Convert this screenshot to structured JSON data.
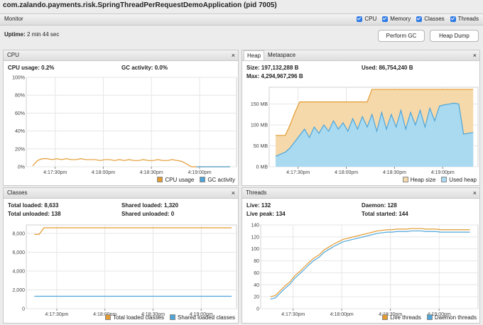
{
  "window_title": "com.zalando.payments.risk.SpringThreadPerRequestDemoApplication (pid 7005)",
  "monitor": {
    "title": "Monitor",
    "checkboxes": [
      "CPU",
      "Memory",
      "Classes",
      "Threads"
    ]
  },
  "uptime": {
    "label": "Uptime:",
    "value": "2 min 44 sec"
  },
  "buttons": [
    "Perform GC",
    "Heap Dump"
  ],
  "panels": [
    {
      "title": "CPU",
      "stats": [
        [
          {
            "label": "CPU usage:",
            "value": "0.2%"
          }
        ],
        [
          {
            "label": "GC activity:",
            "value": "0.0%"
          }
        ]
      ],
      "chart": {
        "type": "line",
        "xlim": [
          58632,
          58763
        ],
        "ylim": [
          0,
          100
        ],
        "xticks": [
          {
            "value": 58650,
            "label": "4:17:30pm"
          },
          {
            "value": 58680,
            "label": "4:18:00pm"
          },
          {
            "value": 58710,
            "label": "4:18:30pm"
          },
          {
            "value": 58740,
            "label": "4:19:00pm"
          }
        ],
        "yticks": [
          {
            "value": 0,
            "label": "0%"
          },
          {
            "value": 20,
            "label": "20%"
          },
          {
            "value": 40,
            "label": "40%"
          },
          {
            "value": 60,
            "label": "60%"
          },
          {
            "value": 80,
            "label": "80%"
          },
          {
            "value": 100,
            "label": "100%"
          }
        ],
        "x": [
          58636,
          58639,
          58642,
          58645,
          58648,
          58651,
          58654,
          58657,
          58660,
          58663,
          58666,
          58669,
          58672,
          58675,
          58678,
          58681,
          58684,
          58687,
          58690,
          58693,
          58696,
          58699,
          58702,
          58705,
          58708,
          58711,
          58714,
          58717,
          58720,
          58723,
          58726,
          58729,
          58732,
          58735,
          58738,
          58741,
          58744,
          58747,
          58750,
          58753,
          58756,
          58759
        ],
        "series": [
          {
            "name": "CPU usage",
            "color": "#e39a2f",
            "values": [
              1,
              7,
              9,
              9,
              8,
              9,
              8,
              9,
              8,
              8,
              9,
              8,
              8,
              8,
              7,
              8,
              8,
              7,
              8,
              7,
              8,
              7,
              7,
              8,
              7,
              7,
              8,
              7,
              7,
              8,
              7,
              6,
              3,
              0,
              0,
              0,
              0,
              0,
              0,
              0,
              0,
              0
            ]
          },
          {
            "name": "GC activity",
            "color": "#4ea5d9",
            "values": [
              null,
              null,
              null,
              null,
              null,
              null,
              null,
              null,
              null,
              null,
              null,
              null,
              null,
              null,
              null,
              null,
              null,
              null,
              null,
              null,
              null,
              null,
              null,
              null,
              null,
              null,
              null,
              null,
              null,
              null,
              null,
              null,
              null,
              null,
              0,
              0,
              0,
              0,
              0,
              0,
              0,
              0
            ]
          }
        ]
      }
    },
    {
      "tabs": [
        "Heap",
        "Metaspace"
      ],
      "stats": [
        [
          {
            "label": "Size:",
            "value": "197,132,288 B"
          },
          {
            "label": "Max:",
            "value": "4,294,967,296 B"
          }
        ],
        [
          {
            "label": "Used:",
            "value": "86,754,240 B"
          }
        ]
      ],
      "chart": {
        "type": "area",
        "xlim": [
          58632,
          58762
        ],
        "ylim": [
          0,
          190
        ],
        "xticks": [
          {
            "value": 58650,
            "label": "4:17:30pm"
          },
          {
            "value": 58680,
            "label": "4:18:00pm"
          },
          {
            "value": 58710,
            "label": "4:18:30pm"
          },
          {
            "value": 58740,
            "label": "4:19:00pm"
          }
        ],
        "yticks": [
          {
            "value": 0,
            "label": "0 MB"
          },
          {
            "value": 50,
            "label": "50 MB"
          },
          {
            "value": 100,
            "label": "100 MB"
          },
          {
            "value": 150,
            "label": "150 MB"
          }
        ],
        "x": [
          58636,
          58639,
          58642,
          58645,
          58648,
          58651,
          58654,
          58657,
          58660,
          58663,
          58666,
          58669,
          58672,
          58675,
          58678,
          58681,
          58684,
          58687,
          58690,
          58693,
          58696,
          58699,
          58702,
          58705,
          58708,
          58711,
          58714,
          58717,
          58720,
          58723,
          58726,
          58729,
          58732,
          58735,
          58738,
          58741,
          58744,
          58747,
          58750,
          58753,
          58756,
          58759
        ],
        "series": [
          {
            "name": "Heap size",
            "color": "#e39a2f",
            "fill": "#f6d9ab",
            "values": [
              75,
              75,
              75,
              100,
              130,
              155,
              155,
              155,
              155,
              155,
              155,
              155,
              155,
              155,
              155,
              155,
              155,
              155,
              155,
              155,
              185,
              185,
              185,
              185,
              185,
              185,
              185,
              185,
              185,
              185,
              185,
              185,
              185,
              185,
              185,
              185,
              185,
              185,
              185,
              185,
              185,
              185
            ]
          },
          {
            "name": "Used heap",
            "color": "#4ea5d9",
            "fill": "#a9daf0",
            "values": [
              25,
              30,
              35,
              45,
              60,
              75,
              90,
              70,
              95,
              80,
              100,
              85,
              110,
              90,
              105,
              85,
              115,
              90,
              120,
              95,
              125,
              85,
              130,
              90,
              125,
              95,
              135,
              90,
              130,
              100,
              135,
              95,
              140,
              110,
              145,
              148,
              150,
              152,
              150,
              78,
              80,
              82
            ]
          }
        ]
      }
    },
    {
      "title": "Classes",
      "stats": [
        [
          {
            "label": "Total loaded:",
            "value": "8,633"
          },
          {
            "label": "Total unloaded:",
            "value": "138"
          }
        ],
        [
          {
            "label": "Shared loaded:",
            "value": "1,320"
          },
          {
            "label": "Shared unloaded:",
            "value": "0"
          }
        ]
      ],
      "chart": {
        "type": "line",
        "xlim": [
          58631,
          58762
        ],
        "ylim": [
          0,
          8900
        ],
        "xticks": [
          {
            "value": 58650,
            "label": "4:17:30pm"
          },
          {
            "value": 58680,
            "label": "4:18:00pm"
          },
          {
            "value": 58710,
            "label": "4:18:30pm"
          },
          {
            "value": 58740,
            "label": "4:19:00pm"
          }
        ],
        "yticks": [
          0,
          {
            "value": 2000,
            "label": "2,000"
          },
          {
            "value": 4000,
            "label": "4,000"
          },
          {
            "value": 6000,
            "label": "6,000"
          },
          {
            "value": 8000,
            "label": "8,000"
          }
        ],
        "x": [
          58636,
          58639,
          58642,
          58645,
          58648,
          58651,
          58654,
          58657,
          58660,
          58663,
          58666,
          58669,
          58672,
          58675,
          58678,
          58681,
          58684,
          58687,
          58690,
          58693,
          58696,
          58699,
          58702,
          58705,
          58708,
          58711,
          58714,
          58717,
          58720,
          58723,
          58726,
          58729,
          58732,
          58735,
          58738,
          58741,
          58744,
          58747,
          58750,
          58753,
          58756,
          58759
        ],
        "series": [
          {
            "name": "Total loaded classes",
            "color": "#e39a2f",
            "values": [
              7900,
              7900,
              8600,
              8600,
              8600,
              8600,
              8600,
              8600,
              8600,
              8600,
              8600,
              8600,
              8600,
              8600,
              8600,
              8600,
              8600,
              8600,
              8600,
              8600,
              8600,
              8600,
              8600,
              8600,
              8600,
              8600,
              8600,
              8600,
              8600,
              8600,
              8600,
              8600,
              8600,
              8600,
              8600,
              8600,
              8600,
              8600,
              8600,
              8600,
              8600,
              8600
            ]
          },
          {
            "name": "Shared loaded classes",
            "color": "#4ea5d9",
            "values": [
              1320,
              1320,
              1320,
              1320,
              1320,
              1320,
              1320,
              1320,
              1320,
              1320,
              1320,
              1320,
              1320,
              1320,
              1320,
              1320,
              1320,
              1320,
              1320,
              1320,
              1320,
              1320,
              1320,
              1320,
              1320,
              1320,
              1320,
              1320,
              1320,
              1320,
              1320,
              1320,
              1320,
              1320,
              1320,
              1320,
              1320,
              1320,
              1320,
              1320,
              1320,
              1320
            ]
          }
        ]
      }
    },
    {
      "title": "Threads",
      "stats": [
        [
          {
            "label": "Live:",
            "value": "132"
          },
          {
            "label": "Live peak:",
            "value": "134"
          }
        ],
        [
          {
            "label": "Daemon:",
            "value": "128"
          },
          {
            "label": "Total started:",
            "value": "144"
          }
        ]
      ],
      "chart": {
        "type": "line",
        "xlim": [
          58630,
          58764
        ],
        "ylim": [
          0,
          140
        ],
        "xticks": [
          {
            "value": 58650,
            "label": "4:17:30pm"
          },
          {
            "value": 58680,
            "label": "4:18:00pm"
          },
          {
            "value": 58710,
            "label": "4:18:30pm"
          },
          {
            "value": 58740,
            "label": "4:19:00pm"
          }
        ],
        "yticks": [
          0,
          20,
          40,
          60,
          80,
          100,
          120,
          140
        ],
        "x": [
          58636,
          58639,
          58642,
          58645,
          58648,
          58651,
          58654,
          58657,
          58660,
          58663,
          58666,
          58669,
          58672,
          58675,
          58678,
          58681,
          58684,
          58687,
          58690,
          58693,
          58696,
          58699,
          58702,
          58705,
          58708,
          58711,
          58714,
          58717,
          58720,
          58723,
          58726,
          58729,
          58732,
          58735,
          58738,
          58741,
          58744,
          58747,
          58750,
          58753,
          58756,
          58759
        ],
        "series": [
          {
            "name": "Live threads",
            "color": "#e39a2f",
            "values": [
              20,
              22,
              30,
              38,
              45,
              55,
              62,
              70,
              78,
              85,
              90,
              98,
              103,
              108,
              112,
              116,
              118,
              120,
              122,
              124,
              126,
              128,
              130,
              131,
              132,
              132,
              133,
              133,
              133,
              134,
              134,
              134,
              133,
              133,
              133,
              132,
              132,
              132,
              132,
              132,
              132,
              132
            ]
          },
          {
            "name": "Daemon threads",
            "color": "#4ea5d9",
            "values": [
              16,
              18,
              26,
              34,
              41,
              51,
              58,
              66,
              74,
              81,
              86,
              94,
              99,
              104,
              108,
              112,
              114,
              116,
              118,
              120,
              122,
              124,
              126,
              127,
              128,
              128,
              129,
              129,
              129,
              130,
              130,
              130,
              129,
              129,
              129,
              128,
              128,
              128,
              128,
              128,
              128,
              128
            ]
          }
        ]
      }
    }
  ]
}
